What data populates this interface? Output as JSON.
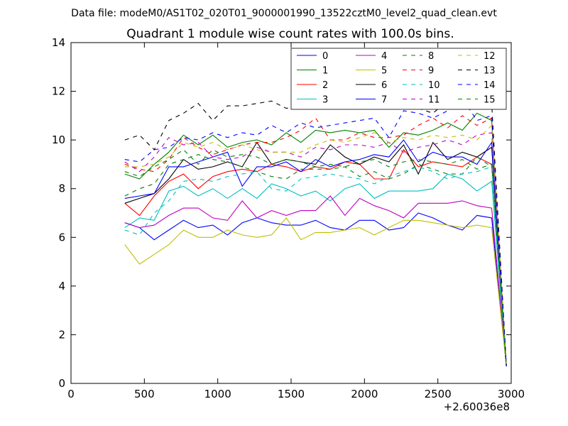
{
  "page": {
    "suptitle": "Data file: modeM0/AS1T02_020T01_9000001990_13522cztM0_level2_quad_clean.evt"
  },
  "chart_data": {
    "type": "line",
    "title": "Quadrant 1 module wise count rates with 100.0s bins.",
    "xlabel": "",
    "ylabel": "",
    "x_offset_label": "+2.60036e8",
    "xlim": [
      0,
      3000
    ],
    "ylim": [
      0,
      14
    ],
    "xticks": [
      0,
      500,
      1000,
      1500,
      2000,
      2500,
      3000
    ],
    "yticks": [
      0,
      2,
      4,
      6,
      8,
      10,
      12,
      14
    ],
    "grid": false,
    "legend_location": "upper right",
    "legend_columns": 4,
    "x": [
      367,
      467,
      567,
      667,
      767,
      867,
      967,
      1067,
      1167,
      1267,
      1367,
      1467,
      1567,
      1667,
      1767,
      1867,
      1967,
      2067,
      2167,
      2267,
      2367,
      2467,
      2567,
      2667,
      2767,
      2867,
      2967
    ],
    "series": [
      {
        "name": "0",
        "color": "#0000ff",
        "dash": "solid",
        "values": [
          6.6,
          6.4,
          5.9,
          6.3,
          6.7,
          6.4,
          6.5,
          6.1,
          6.6,
          6.8,
          6.6,
          6.5,
          6.5,
          6.7,
          6.4,
          6.3,
          6.7,
          6.7,
          6.3,
          6.4,
          7.0,
          6.8,
          6.5,
          6.3,
          6.9,
          6.8,
          0.7
        ]
      },
      {
        "name": "1",
        "color": "#008000",
        "dash": "solid",
        "values": [
          8.6,
          8.4,
          9.0,
          9.5,
          10.2,
          9.8,
          10.2,
          9.7,
          9.9,
          10.0,
          9.8,
          10.3,
          9.9,
          10.4,
          10.3,
          10.4,
          10.3,
          10.4,
          9.7,
          10.3,
          10.2,
          10.4,
          10.7,
          10.4,
          11.1,
          10.8,
          0.7
        ]
      },
      {
        "name": "2",
        "color": "#ff0000",
        "dash": "solid",
        "values": [
          7.4,
          6.9,
          7.7,
          8.3,
          8.6,
          8.0,
          8.5,
          8.7,
          8.8,
          8.7,
          9.0,
          8.9,
          8.7,
          8.9,
          8.8,
          9.1,
          9.0,
          8.4,
          8.4,
          9.6,
          8.9,
          9.1,
          9.0,
          8.9,
          9.3,
          9.0,
          0.7
        ]
      },
      {
        "name": "3",
        "color": "#00bfbf",
        "dash": "solid",
        "values": [
          6.4,
          6.8,
          6.7,
          7.9,
          8.1,
          7.7,
          8.0,
          7.6,
          8.0,
          7.6,
          8.2,
          8.0,
          7.7,
          7.9,
          7.5,
          8.0,
          8.2,
          7.6,
          7.9,
          7.9,
          7.9,
          8.0,
          8.6,
          8.4,
          7.9,
          8.3,
          0.7
        ]
      },
      {
        "name": "4",
        "color": "#bf00bf",
        "dash": "solid",
        "values": [
          6.6,
          6.4,
          6.5,
          6.9,
          7.2,
          7.2,
          6.8,
          6.7,
          7.5,
          6.8,
          7.1,
          6.9,
          7.1,
          7.1,
          7.7,
          6.9,
          7.6,
          7.3,
          7.1,
          6.8,
          7.4,
          7.4,
          7.4,
          7.5,
          7.3,
          7.2,
          0.7
        ]
      },
      {
        "name": "5",
        "color": "#bfbf00",
        "dash": "solid",
        "values": [
          5.7,
          4.9,
          5.3,
          5.7,
          6.3,
          6.0,
          6.0,
          6.3,
          6.1,
          6.0,
          6.1,
          6.8,
          5.9,
          6.2,
          6.2,
          6.3,
          6.4,
          6.1,
          6.4,
          6.7,
          6.7,
          6.6,
          6.5,
          6.4,
          6.5,
          6.4,
          0.7
        ]
      },
      {
        "name": "6",
        "color": "#000000",
        "dash": "solid",
        "values": [
          7.4,
          7.6,
          7.8,
          8.4,
          9.2,
          8.8,
          8.9,
          9.1,
          8.9,
          9.9,
          9.0,
          9.2,
          9.1,
          9.0,
          9.8,
          9.3,
          9.0,
          9.3,
          9.1,
          9.8,
          8.6,
          9.9,
          9.2,
          9.5,
          9.3,
          9.7,
          0.7
        ]
      },
      {
        "name": "7",
        "color": "#0000ff",
        "dash": "solid",
        "values": [
          7.6,
          7.7,
          7.8,
          8.9,
          8.9,
          9.1,
          9.3,
          9.5,
          8.1,
          8.9,
          8.9,
          9.1,
          8.7,
          9.2,
          8.9,
          9.1,
          9.2,
          9.4,
          9.3,
          10.0,
          9.1,
          9.5,
          9.3,
          9.3,
          9.0,
          9.9,
          0.7
        ]
      },
      {
        "name": "8",
        "color": "#008000",
        "dash": "dashed",
        "values": [
          7.7,
          8.0,
          8.2,
          9.0,
          9.2,
          9.4,
          9.2,
          9.1,
          8.9,
          8.7,
          8.5,
          8.4,
          8.8,
          8.8,
          8.8,
          8.9,
          8.5,
          8.7,
          8.4,
          8.6,
          9.0,
          8.8,
          8.6,
          8.6,
          9.3,
          8.9,
          0.7
        ]
      },
      {
        "name": "9",
        "color": "#ff0000",
        "dash": "dashed",
        "values": [
          9.0,
          8.8,
          8.7,
          9.2,
          10.1,
          9.7,
          9.4,
          9.6,
          9.8,
          9.9,
          9.9,
          10.1,
          10.4,
          10.9,
          10.0,
          10.0,
          10.3,
          10.1,
          10.1,
          10.2,
          10.6,
          10.9,
          10.5,
          11.0,
          10.6,
          10.9,
          0.7
        ]
      },
      {
        "name": "10",
        "color": "#00bfbf",
        "dash": "dashed",
        "values": [
          6.3,
          6.1,
          7.0,
          7.5,
          8.3,
          8.4,
          8.3,
          8.5,
          8.6,
          8.7,
          8.0,
          7.9,
          8.4,
          8.5,
          8.6,
          8.5,
          8.4,
          8.2,
          8.5,
          8.7,
          8.9,
          8.7,
          8.4,
          8.6,
          8.7,
          8.9,
          0.7
        ]
      },
      {
        "name": "11",
        "color": "#bf00bf",
        "dash": "dashed",
        "values": [
          9.1,
          8.7,
          9.3,
          10.1,
          9.8,
          9.9,
          9.3,
          9.2,
          9.3,
          9.7,
          9.5,
          9.5,
          9.3,
          9.7,
          9.6,
          9.8,
          9.8,
          9.7,
          9.9,
          9.5,
          9.7,
          9.8,
          10.0,
          9.8,
          10.2,
          10.3,
          0.7
        ]
      },
      {
        "name": "12",
        "color": "#bfbf00",
        "dash": "dashed",
        "values": [
          8.9,
          8.9,
          9.0,
          9.3,
          9.9,
          9.7,
          9.9,
          9.6,
          9.8,
          9.6,
          9.5,
          9.5,
          9.5,
          9.8,
          10.0,
          9.9,
          10.1,
          10.3,
          9.9,
          10.1,
          10.0,
          10.2,
          10.1,
          10.2,
          10.0,
          10.6,
          0.7
        ]
      },
      {
        "name": "13",
        "color": "#000000",
        "dash": "dashed",
        "values": [
          10.0,
          10.2,
          9.6,
          10.8,
          11.1,
          11.5,
          10.8,
          11.4,
          11.4,
          11.5,
          11.6,
          11.3,
          11.4,
          11.6,
          12.0,
          11.5,
          11.7,
          12.2,
          11.8,
          11.5,
          11.3,
          11.1,
          11.6,
          11.4,
          11.6,
          11.5,
          0.7
        ]
      },
      {
        "name": "14",
        "color": "#0000ff",
        "dash": "dashed",
        "values": [
          9.2,
          9.1,
          9.6,
          9.7,
          10.1,
          10.0,
          10.3,
          10.1,
          10.3,
          10.2,
          10.6,
          10.3,
          10.7,
          10.5,
          10.6,
          10.7,
          10.8,
          10.9,
          10.1,
          11.2,
          11.1,
          10.9,
          11.2,
          11.7,
          10.8,
          11.0,
          0.7
        ]
      },
      {
        "name": "15",
        "color": "#008000",
        "dash": "dashed",
        "values": [
          8.7,
          8.5,
          8.9,
          9.2,
          9.6,
          9.0,
          9.6,
          9.3,
          9.4,
          9.3,
          9.0,
          9.2,
          9.1,
          8.9,
          9.0,
          8.9,
          9.1,
          9.2,
          8.9,
          9.1,
          9.2,
          9.1,
          9.0,
          9.2,
          8.8,
          9.0,
          0.7
        ]
      }
    ]
  }
}
